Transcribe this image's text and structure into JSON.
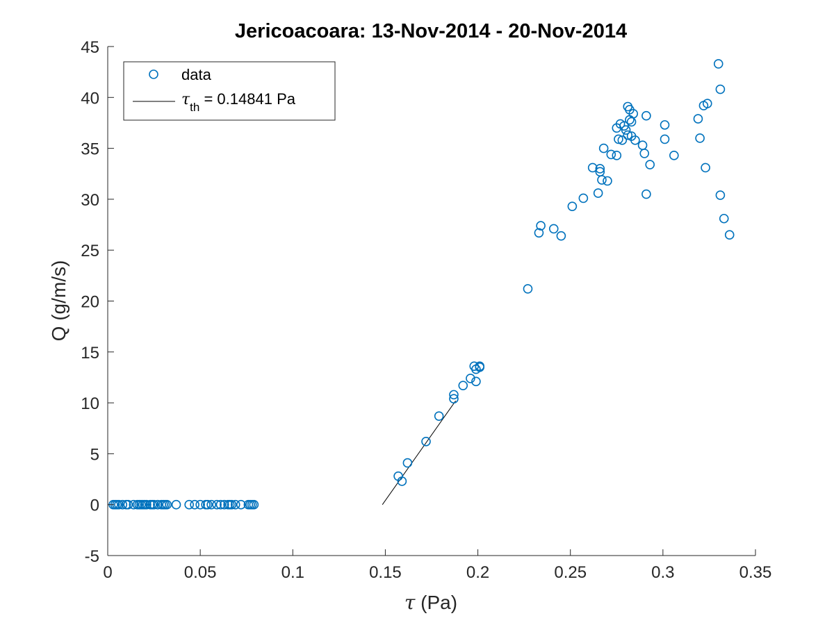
{
  "chart_data": {
    "type": "scatter",
    "title": "Jericoacoara: 13-Nov-2014 - 20-Nov-2014",
    "xlabel_symbol": "τ",
    "xlabel_unit": " (Pa)",
    "ylabel": "Q (g/m/s)",
    "xlim": [
      0,
      0.35
    ],
    "ylim": [
      -5,
      45
    ],
    "x_ticks": [
      0,
      0.05,
      0.1,
      0.15,
      0.2,
      0.25,
      0.3,
      0.35
    ],
    "x_tick_labels": [
      "0",
      "0.05",
      "0.1",
      "0.15",
      "0.2",
      "0.25",
      "0.3",
      "0.35"
    ],
    "y_ticks": [
      -5,
      0,
      5,
      10,
      15,
      20,
      25,
      30,
      35,
      40,
      45
    ],
    "y_tick_labels": [
      "-5",
      "0",
      "5",
      "10",
      "15",
      "20",
      "25",
      "30",
      "35",
      "40",
      "45"
    ],
    "grid": false,
    "legend_position": "top-left",
    "colors": {
      "data": "#0072BD",
      "fit": "#000000",
      "axis": "#262626"
    },
    "series": [
      {
        "name": "data",
        "marker": "circle",
        "points": [
          [
            0.003,
            0
          ],
          [
            0.004,
            0
          ],
          [
            0.005,
            0
          ],
          [
            0.006,
            0
          ],
          [
            0.008,
            0
          ],
          [
            0.01,
            0
          ],
          [
            0.011,
            0
          ],
          [
            0.014,
            0
          ],
          [
            0.016,
            0
          ],
          [
            0.017,
            0
          ],
          [
            0.018,
            0
          ],
          [
            0.019,
            0
          ],
          [
            0.02,
            0
          ],
          [
            0.021,
            0
          ],
          [
            0.023,
            0
          ],
          [
            0.024,
            0
          ],
          [
            0.025,
            0
          ],
          [
            0.027,
            0
          ],
          [
            0.029,
            0
          ],
          [
            0.03,
            0
          ],
          [
            0.031,
            0
          ],
          [
            0.032,
            0
          ],
          [
            0.037,
            0
          ],
          [
            0.044,
            0
          ],
          [
            0.047,
            0
          ],
          [
            0.05,
            0
          ],
          [
            0.053,
            0
          ],
          [
            0.054,
            0
          ],
          [
            0.056,
            0
          ],
          [
            0.059,
            0
          ],
          [
            0.061,
            0
          ],
          [
            0.063,
            0
          ],
          [
            0.065,
            0
          ],
          [
            0.066,
            0
          ],
          [
            0.067,
            0
          ],
          [
            0.069,
            0
          ],
          [
            0.072,
            0
          ],
          [
            0.076,
            0
          ],
          [
            0.077,
            0
          ],
          [
            0.078,
            0
          ],
          [
            0.079,
            0
          ],
          [
            0.157,
            2.8
          ],
          [
            0.159,
            2.3
          ],
          [
            0.162,
            4.1
          ],
          [
            0.172,
            6.2
          ],
          [
            0.179,
            8.7
          ],
          [
            0.187,
            10.8
          ],
          [
            0.187,
            10.4
          ],
          [
            0.192,
            11.7
          ],
          [
            0.196,
            12.4
          ],
          [
            0.198,
            13.6
          ],
          [
            0.199,
            13.3
          ],
          [
            0.199,
            12.1
          ],
          [
            0.201,
            13.5
          ],
          [
            0.201,
            13.6
          ],
          [
            0.227,
            21.2
          ],
          [
            0.233,
            26.7
          ],
          [
            0.234,
            27.4
          ],
          [
            0.241,
            27.1
          ],
          [
            0.245,
            26.4
          ],
          [
            0.251,
            29.3
          ],
          [
            0.257,
            30.1
          ],
          [
            0.262,
            33.1
          ],
          [
            0.265,
            30.6
          ],
          [
            0.266,
            33.0
          ],
          [
            0.266,
            32.7
          ],
          [
            0.267,
            31.9
          ],
          [
            0.268,
            35.0
          ],
          [
            0.27,
            31.8
          ],
          [
            0.272,
            34.4
          ],
          [
            0.275,
            34.3
          ],
          [
            0.275,
            37.0
          ],
          [
            0.276,
            35.9
          ],
          [
            0.277,
            37.4
          ],
          [
            0.278,
            35.8
          ],
          [
            0.279,
            37.2
          ],
          [
            0.28,
            36.8
          ],
          [
            0.281,
            36.3
          ],
          [
            0.281,
            39.1
          ],
          [
            0.282,
            38.8
          ],
          [
            0.282,
            37.8
          ],
          [
            0.283,
            36.2
          ],
          [
            0.283,
            37.6
          ],
          [
            0.284,
            38.4
          ],
          [
            0.285,
            35.8
          ],
          [
            0.289,
            35.3
          ],
          [
            0.29,
            34.5
          ],
          [
            0.291,
            38.2
          ],
          [
            0.291,
            30.5
          ],
          [
            0.293,
            33.4
          ],
          [
            0.301,
            35.9
          ],
          [
            0.301,
            37.3
          ],
          [
            0.306,
            34.3
          ],
          [
            0.319,
            37.9
          ],
          [
            0.32,
            36.0
          ],
          [
            0.322,
            39.2
          ],
          [
            0.323,
            33.1
          ],
          [
            0.324,
            39.4
          ],
          [
            0.33,
            43.3
          ],
          [
            0.331,
            40.8
          ],
          [
            0.331,
            30.4
          ],
          [
            0.333,
            28.1
          ],
          [
            0.336,
            26.5
          ]
        ]
      },
      {
        "name_symbol": "τ",
        "name_subscript": "th",
        "name_value": " = 0.14841 Pa",
        "line": [
          [
            0.14841,
            0
          ],
          [
            0.188,
            10.2
          ]
        ]
      }
    ]
  }
}
